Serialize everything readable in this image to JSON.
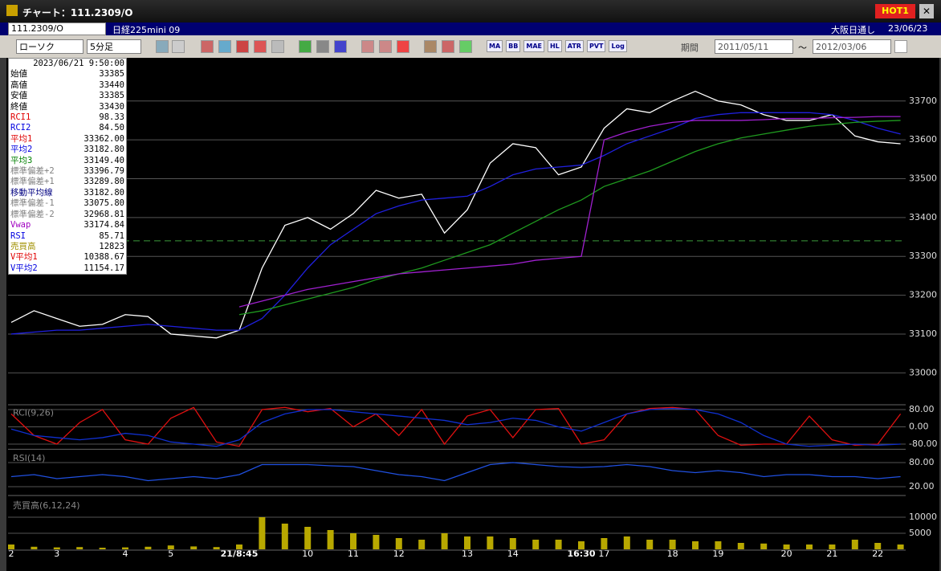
{
  "window": {
    "title": "チャート：111.2309/O",
    "hot_button": "HOT1"
  },
  "header": {
    "symbol": "111.2309/O",
    "name": "日経225mini 09",
    "session": "大阪日通し",
    "date": "23/06/23"
  },
  "toolbar": {
    "chart_style": "ローソク",
    "interval": "5分足",
    "text_buttons": [
      "MA",
      "BB",
      "MAE",
      "HL",
      "ATR",
      "PVT",
      "Log"
    ],
    "period_label": "期間",
    "from": "2011/05/11",
    "separator": "〜",
    "to": "2012/03/06"
  },
  "info_panel": {
    "datetime": "2023/06/21 9:50:00",
    "rows": [
      {
        "label": "始値",
        "value": "33385",
        "color": "#000000"
      },
      {
        "label": "高値",
        "value": "33440",
        "color": "#000000"
      },
      {
        "label": "安値",
        "value": "33385",
        "color": "#000000"
      },
      {
        "label": "終値",
        "value": "33430",
        "color": "#000000"
      },
      {
        "label": "RCI1",
        "value": "98.33",
        "color": "#e00000"
      },
      {
        "label": "RCI2",
        "value": "84.50",
        "color": "#0000e0"
      },
      {
        "label": "平均1",
        "value": "33362.00",
        "color": "#e00000"
      },
      {
        "label": "平均2",
        "value": "33182.80",
        "color": "#0000e0"
      },
      {
        "label": "平均3",
        "value": "33149.40",
        "color": "#008000"
      },
      {
        "label": "標準偏差+2",
        "value": "33396.79",
        "color": "#808080"
      },
      {
        "label": "標準偏差+1",
        "value": "33289.80",
        "color": "#808080"
      },
      {
        "label": "移動平均線",
        "value": "33182.80",
        "color": "#000080"
      },
      {
        "label": "標準偏差-1",
        "value": "33075.80",
        "color": "#808080"
      },
      {
        "label": "標準偏差-2",
        "value": "32968.81",
        "color": "#808080"
      },
      {
        "label": "Vwap",
        "value": "33174.84",
        "color": "#a000c0"
      },
      {
        "label": "RSI",
        "value": "85.71",
        "color": "#0000e0"
      },
      {
        "label": "売買高",
        "value": "12823",
        "color": "#a09000"
      },
      {
        "label": "V平均1",
        "value": "10388.67",
        "color": "#e00000"
      },
      {
        "label": "V平均2",
        "value": "11154.17",
        "color": "#0000e0"
      }
    ]
  },
  "chart_data": [
    {
      "type": "line",
      "ylim": [
        32920,
        33805
      ],
      "yticks": [
        33000,
        33100,
        33200,
        33300,
        33400,
        33500,
        33600,
        33700
      ],
      "grid": true,
      "hline": 33340,
      "hline_color": "#3a9a3a",
      "categories": [
        "2",
        null,
        "3",
        null,
        null,
        "4",
        null,
        "5",
        null,
        null,
        "21/8:45",
        null,
        null,
        "10",
        null,
        "11",
        null,
        "12",
        null,
        null,
        "13",
        null,
        "14",
        null,
        null,
        "16:30",
        "17",
        null,
        null,
        "18",
        null,
        "19",
        null,
        null,
        "20",
        null,
        "21",
        null,
        "22",
        null
      ],
      "series": [
        {
          "color": "#ffffff",
          "values": [
            33130,
            33160,
            33140,
            33120,
            33125,
            33150,
            33145,
            33100,
            33095,
            33090,
            33110,
            33270,
            33380,
            33400,
            33370,
            33410,
            33470,
            33450,
            33460,
            33360,
            33420,
            33540,
            33590,
            33580,
            33510,
            33530,
            33630,
            33680,
            33670,
            33700,
            33725,
            33700,
            33690,
            33665,
            33650,
            33650,
            33665,
            33610,
            33595,
            33590
          ]
        },
        {
          "color": "#2020e0",
          "values": [
            33100,
            33105,
            33110,
            33110,
            33115,
            33120,
            33125,
            33120,
            33115,
            33110,
            33110,
            33140,
            33200,
            33270,
            33330,
            33370,
            33410,
            33430,
            33445,
            33450,
            33455,
            33480,
            33510,
            33525,
            33530,
            33535,
            33560,
            33590,
            33610,
            33630,
            33655,
            33665,
            33670,
            33670,
            33670,
            33670,
            33665,
            33650,
            33630,
            33615
          ]
        },
        {
          "color": "#1f9a1f",
          "values": [
            null,
            null,
            null,
            null,
            null,
            null,
            null,
            null,
            null,
            null,
            33150,
            33160,
            33175,
            33190,
            33205,
            33220,
            33240,
            33255,
            33270,
            33290,
            33310,
            33330,
            33360,
            33390,
            33420,
            33445,
            33480,
            33500,
            33520,
            33545,
            33570,
            33590,
            33605,
            33615,
            33625,
            33635,
            33640,
            33645,
            33648,
            33650
          ]
        },
        {
          "color": "#a020d0",
          "values": [
            null,
            null,
            null,
            null,
            null,
            null,
            null,
            null,
            null,
            null,
            33170,
            33185,
            33200,
            33215,
            33225,
            33235,
            33245,
            33255,
            33260,
            33265,
            33270,
            33275,
            33280,
            33290,
            33295,
            33300,
            33600,
            33620,
            33635,
            33645,
            33650,
            33650,
            33650,
            33652,
            33655,
            33655,
            33657,
            33658,
            33660,
            33660
          ]
        }
      ]
    },
    {
      "type": "line",
      "title": "RCI(9,26)",
      "ylim": [
        -100,
        100
      ],
      "yticks": [
        {
          "value": 80,
          "label": "80.00"
        },
        {
          "value": 0,
          "label": "0.00"
        },
        {
          "value": -80,
          "label": "-80.00"
        }
      ],
      "grid": true,
      "series": [
        {
          "color": "#e01010",
          "values": [
            60,
            -40,
            -80,
            20,
            80,
            -60,
            -80,
            40,
            90,
            -70,
            -90,
            80,
            90,
            70,
            85,
            0,
            60,
            -40,
            80,
            -80,
            50,
            80,
            -50,
            80,
            85,
            -80,
            -60,
            60,
            85,
            90,
            80,
            -40,
            -85,
            -80,
            -80,
            50,
            -60,
            -85,
            -80,
            60
          ]
        },
        {
          "color": "#1030d0",
          "values": [
            -10,
            -40,
            -50,
            -60,
            -50,
            -30,
            -40,
            -70,
            -80,
            -90,
            -60,
            20,
            60,
            80,
            80,
            70,
            60,
            50,
            40,
            30,
            10,
            20,
            40,
            30,
            0,
            -20,
            20,
            60,
            80,
            85,
            80,
            60,
            20,
            -40,
            -80,
            -90,
            -85,
            -80,
            -85,
            -80
          ]
        }
      ]
    },
    {
      "type": "line",
      "title": "RSI(14)",
      "ylim": [
        0,
        110
      ],
      "yticks": [
        {
          "value": 80,
          "label": "80.00"
        },
        {
          "value": 20,
          "label": "20.00"
        }
      ],
      "grid": true,
      "series": [
        {
          "color": "#2050e0",
          "values": [
            45,
            50,
            40,
            45,
            50,
            45,
            35,
            40,
            45,
            40,
            50,
            75,
            75,
            75,
            72,
            70,
            60,
            50,
            45,
            35,
            55,
            75,
            80,
            75,
            70,
            68,
            70,
            75,
            70,
            60,
            55,
            60,
            55,
            45,
            50,
            50,
            45,
            45,
            40,
            45
          ]
        }
      ]
    },
    {
      "type": "bar",
      "title": "売買高(6,12,24)",
      "ylim": [
        0,
        16000
      ],
      "yticks": [
        5000,
        10000
      ],
      "grid": true,
      "color": "#b8a800",
      "values": [
        1500,
        800,
        600,
        700,
        500,
        600,
        800,
        1200,
        900,
        700,
        1500,
        10000,
        8000,
        7000,
        6000,
        5000,
        4500,
        3500,
        3000,
        5000,
        4000,
        4000,
        3500,
        3000,
        3000,
        2500,
        3500,
        4000,
        3000,
        3000,
        2500,
        2500,
        2000,
        1800,
        1500,
        1500,
        1500,
        3000,
        2000,
        1500
      ]
    }
  ]
}
